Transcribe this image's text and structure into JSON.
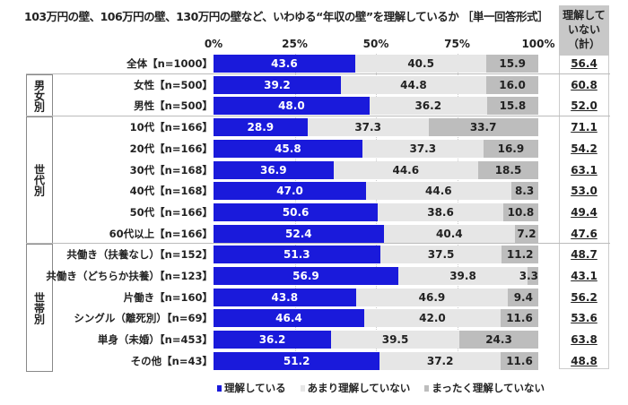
{
  "chart_data": {
    "type": "bar",
    "stacked": true,
    "orientation": "horizontal",
    "title": "103万円の壁、106万円の壁、130万円の壁など、いわゆる“年収の壁”を理解しているか ［単一回答形式］",
    "xlim": [
      0,
      100
    ],
    "ticks": [
      "0%",
      "25%",
      "50%",
      "75%",
      "100%"
    ],
    "total_header": "理解して いない （計）",
    "series": [
      {
        "name": "理解している",
        "color": "#1a1adb"
      },
      {
        "name": "あまり理解していない",
        "color": "#e6e6e6"
      },
      {
        "name": "まったく理解していない",
        "color": "#bdbdbd"
      }
    ],
    "groups": [
      {
        "label": "男女別",
        "rows": [
          1,
          2
        ]
      },
      {
        "label": "世代別",
        "rows": [
          3,
          8
        ]
      },
      {
        "label": "世帯別",
        "rows": [
          9,
          14
        ]
      }
    ],
    "rows": [
      {
        "label": "全体【n=1000】",
        "values": [
          43.6,
          40.5,
          15.9
        ],
        "total": "56.4"
      },
      {
        "label": "女性【n=500】",
        "values": [
          39.2,
          44.8,
          16.0
        ],
        "total": "60.8"
      },
      {
        "label": "男性【n=500】",
        "values": [
          48.0,
          36.2,
          15.8
        ],
        "total": "52.0"
      },
      {
        "label": "10代【n=166】",
        "values": [
          28.9,
          37.3,
          33.7
        ],
        "total": "71.1"
      },
      {
        "label": "20代【n=166】",
        "values": [
          45.8,
          37.3,
          16.9
        ],
        "total": "54.2"
      },
      {
        "label": "30代【n=168】",
        "values": [
          36.9,
          44.6,
          18.5
        ],
        "total": "63.1"
      },
      {
        "label": "40代【n=168】",
        "values": [
          47.0,
          44.6,
          8.3
        ],
        "total": "53.0"
      },
      {
        "label": "50代【n=166】",
        "values": [
          50.6,
          38.6,
          10.8
        ],
        "total": "49.4"
      },
      {
        "label": "60代以上【n=166】",
        "values": [
          52.4,
          40.4,
          7.2
        ],
        "total": "47.6"
      },
      {
        "label": "共働き（扶養なし）【n=152】",
        "values": [
          51.3,
          37.5,
          11.2
        ],
        "total": "48.7"
      },
      {
        "label": "共働き（どちらか扶養）【n=123】",
        "values": [
          56.9,
          39.8,
          3.3
        ],
        "total": "43.1"
      },
      {
        "label": "片働き【n=160】",
        "values": [
          43.8,
          46.9,
          9.4
        ],
        "total": "56.2"
      },
      {
        "label": "シングル（離死別）【n=69】",
        "values": [
          46.4,
          42.0,
          11.6
        ],
        "total": "53.6"
      },
      {
        "label": "単身（未婚）【n=453】",
        "values": [
          36.2,
          39.5,
          24.3
        ],
        "total": "63.8"
      },
      {
        "label": "その他【n=43】",
        "values": [
          51.2,
          37.2,
          11.6
        ],
        "total": "48.8"
      }
    ]
  }
}
